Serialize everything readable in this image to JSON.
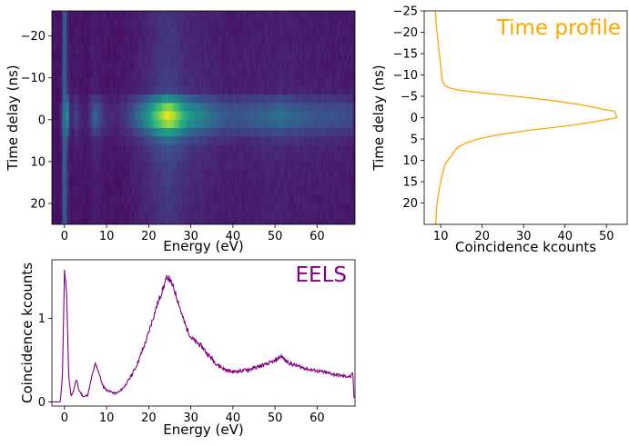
{
  "chart_data": [
    {
      "type": "heatmap",
      "xlabel": "Energy (eV)",
      "ylabel": "Time delay (ns)",
      "xlim": [
        -3,
        69
      ],
      "ylim": [
        -26,
        25
      ],
      "y_inverted": true,
      "x_ticks": [
        0,
        10,
        20,
        30,
        40,
        50,
        60
      ],
      "y_ticks": [
        -20,
        -10,
        0,
        10,
        20
      ],
      "colormap": "viridis",
      "time_bins": [
        -26,
        -24,
        -22,
        -20,
        -18,
        -16,
        -14,
        -12,
        -10,
        -8,
        -6,
        -4,
        -2,
        0,
        2,
        4,
        6,
        8,
        10,
        12,
        14,
        16,
        18,
        20,
        22,
        24
      ],
      "features": [
        {
          "energy_eV": 0,
          "description": "zero-loss peak, visible at all delays"
        },
        {
          "energy_eV": 25,
          "description": "plasmon maximum near time delay 0"
        }
      ]
    },
    {
      "type": "line",
      "title": "Time profile",
      "xlabel": "Coincidence kcounts",
      "ylabel": "Time delay (ns)",
      "xlim": [
        6,
        55
      ],
      "ylim": [
        -25,
        25
      ],
      "y_inverted": true,
      "x_ticks": [
        10,
        20,
        30,
        40,
        50
      ],
      "y_ticks": [
        -25,
        -20,
        -15,
        -10,
        -5,
        0,
        5,
        10,
        15,
        20
      ],
      "color": "#FFA500",
      "points": [
        {
          "t": -25,
          "k": 8.7
        },
        {
          "t": -22,
          "k": 8.9
        },
        {
          "t": -19,
          "k": 9.2
        },
        {
          "t": -16,
          "k": 9.5
        },
        {
          "t": -14,
          "k": 9.8
        },
        {
          "t": -12,
          "k": 10.0
        },
        {
          "t": -10,
          "k": 10.2
        },
        {
          "t": -8.5,
          "k": 10.4
        },
        {
          "t": -7.5,
          "k": 11.0
        },
        {
          "t": -7,
          "k": 12.0
        },
        {
          "t": -6.5,
          "k": 14.0
        },
        {
          "t": -6,
          "k": 18.0
        },
        {
          "t": -5,
          "k": 28.0
        },
        {
          "t": -4,
          "k": 37.0
        },
        {
          "t": -3,
          "k": 44.0
        },
        {
          "t": -2,
          "k": 49.0
        },
        {
          "t": -1.5,
          "k": 52.0
        },
        {
          "t": 0,
          "k": 52.5
        },
        {
          "t": 1,
          "k": 47.0
        },
        {
          "t": 2,
          "k": 40.0
        },
        {
          "t": 3,
          "k": 31.0
        },
        {
          "t": 4,
          "k": 24.0
        },
        {
          "t": 5,
          "k": 19.0
        },
        {
          "t": 6,
          "k": 16.0
        },
        {
          "t": 7,
          "k": 14.0
        },
        {
          "t": 9,
          "k": 12.5
        },
        {
          "t": 11,
          "k": 11.0
        },
        {
          "t": 14,
          "k": 10.2
        },
        {
          "t": 17,
          "k": 9.6
        },
        {
          "t": 20,
          "k": 9.1
        },
        {
          "t": 23,
          "k": 8.9
        },
        {
          "t": 25,
          "k": 8.8
        }
      ]
    },
    {
      "type": "line",
      "title": "EELS",
      "xlabel": "Energy (eV)",
      "ylabel": "Coincidence kcounts",
      "xlim": [
        -3,
        69
      ],
      "ylim": [
        -0.05,
        1.7
      ],
      "x_ticks": [
        0,
        10,
        20,
        30,
        40,
        50,
        60
      ],
      "y_ticks": [
        0,
        1
      ],
      "color": "#800080",
      "points": [
        {
          "e": -3,
          "c": 0.0
        },
        {
          "e": -1.0,
          "c": 0.0
        },
        {
          "e": -0.5,
          "c": 0.3
        },
        {
          "e": 0,
          "c": 1.58
        },
        {
          "e": 0.5,
          "c": 1.3
        },
        {
          "e": 1.0,
          "c": 0.3
        },
        {
          "e": 1.6,
          "c": 0.06
        },
        {
          "e": 2.2,
          "c": 0.15
        },
        {
          "e": 2.8,
          "c": 0.27
        },
        {
          "e": 3.4,
          "c": 0.14
        },
        {
          "e": 4.5,
          "c": 0.06
        },
        {
          "e": 5.5,
          "c": 0.08
        },
        {
          "e": 6.5,
          "c": 0.3
        },
        {
          "e": 7.3,
          "c": 0.45
        },
        {
          "e": 8.0,
          "c": 0.38
        },
        {
          "e": 9,
          "c": 0.2
        },
        {
          "e": 10,
          "c": 0.14
        },
        {
          "e": 11,
          "c": 0.12
        },
        {
          "e": 12,
          "c": 0.1
        },
        {
          "e": 13,
          "c": 0.12
        },
        {
          "e": 14,
          "c": 0.17
        },
        {
          "e": 15,
          "c": 0.24
        },
        {
          "e": 16,
          "c": 0.33
        },
        {
          "e": 17,
          "c": 0.42
        },
        {
          "e": 18,
          "c": 0.55
        },
        {
          "e": 19,
          "c": 0.68
        },
        {
          "e": 20,
          "c": 0.83
        },
        {
          "e": 21,
          "c": 1.0
        },
        {
          "e": 22,
          "c": 1.16
        },
        {
          "e": 23,
          "c": 1.3
        },
        {
          "e": 24,
          "c": 1.44
        },
        {
          "e": 24.5,
          "c": 1.5
        },
        {
          "e": 25,
          "c": 1.46
        },
        {
          "e": 26,
          "c": 1.35
        },
        {
          "e": 27,
          "c": 1.2
        },
        {
          "e": 28,
          "c": 1.02
        },
        {
          "e": 29,
          "c": 0.88
        },
        {
          "e": 30,
          "c": 0.78
        },
        {
          "e": 31,
          "c": 0.72
        },
        {
          "e": 32,
          "c": 0.69
        },
        {
          "e": 33,
          "c": 0.64
        },
        {
          "e": 34,
          "c": 0.57
        },
        {
          "e": 35,
          "c": 0.52
        },
        {
          "e": 36,
          "c": 0.46
        },
        {
          "e": 37,
          "c": 0.42
        },
        {
          "e": 38,
          "c": 0.39
        },
        {
          "e": 39,
          "c": 0.37
        },
        {
          "e": 40,
          "c": 0.36
        },
        {
          "e": 42,
          "c": 0.37
        },
        {
          "e": 44,
          "c": 0.39
        },
        {
          "e": 46,
          "c": 0.42
        },
        {
          "e": 48,
          "c": 0.45
        },
        {
          "e": 50,
          "c": 0.49
        },
        {
          "e": 51.5,
          "c": 0.55
        },
        {
          "e": 52.5,
          "c": 0.49
        },
        {
          "e": 54,
          "c": 0.45
        },
        {
          "e": 56,
          "c": 0.42
        },
        {
          "e": 58,
          "c": 0.39
        },
        {
          "e": 60,
          "c": 0.37
        },
        {
          "e": 62,
          "c": 0.35
        },
        {
          "e": 64,
          "c": 0.33
        },
        {
          "e": 66,
          "c": 0.31
        },
        {
          "e": 68,
          "c": 0.3
        },
        {
          "e": 68.5,
          "c": 0.34
        },
        {
          "e": 68.8,
          "c": 0.0
        }
      ]
    }
  ]
}
